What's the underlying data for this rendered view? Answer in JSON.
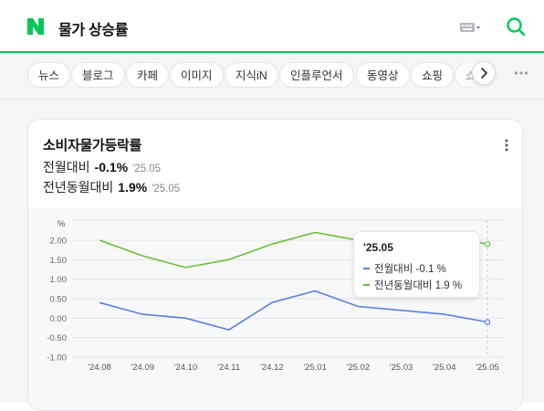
{
  "search": {
    "query": "물가 상승률",
    "keyboard_icon": "keyboard-icon",
    "search_icon": "search-icon"
  },
  "tabs": [
    {
      "label": "뉴스"
    },
    {
      "label": "블로그"
    },
    {
      "label": "카페"
    },
    {
      "label": "이미지"
    },
    {
      "label": "지식iN"
    },
    {
      "label": "인플루언서"
    },
    {
      "label": "동영상"
    },
    {
      "label": "쇼핑"
    },
    {
      "label": "쇼"
    }
  ],
  "card": {
    "title": "소비자물가등락률",
    "stats": [
      {
        "label": "전월대비",
        "value": "-0.1%",
        "date": "'25.05"
      },
      {
        "label": "전년동월대비",
        "value": "1.9%",
        "date": "'25.05"
      }
    ]
  },
  "tooltip": {
    "date": "'25.05",
    "rows": [
      {
        "label": "전월대비",
        "value": "-0.1 %"
      },
      {
        "label": "전년동월대비",
        "value": "1.9 %"
      }
    ]
  },
  "colors": {
    "brand": "#03c75a",
    "mom_line": "#5b7fde",
    "yoy_line": "#6bbf3a"
  },
  "chart_data": {
    "type": "line",
    "ylabel": "%",
    "categories": [
      "'24.08",
      "'24.09",
      "'24.10",
      "'24.11",
      "'24.12",
      "'25.01",
      "'25.02",
      "'25.03",
      "'25.04",
      "'25.05"
    ],
    "y_ticks": [
      "2.00",
      "1.50",
      "1.00",
      "0.50",
      "0.00",
      "-0.50",
      "-1.00"
    ],
    "ylim": [
      -1.0,
      2.0
    ],
    "grid": true,
    "series": [
      {
        "name": "전월대비",
        "color": "#5b7fde",
        "values": [
          0.4,
          0.1,
          0.0,
          -0.3,
          0.4,
          0.7,
          0.3,
          0.2,
          0.1,
          -0.1
        ]
      },
      {
        "name": "전년동월대비",
        "color": "#6bbf3a",
        "values": [
          2.0,
          1.6,
          1.3,
          1.5,
          1.9,
          2.2,
          2.0,
          2.1,
          2.1,
          1.9
        ]
      }
    ]
  }
}
